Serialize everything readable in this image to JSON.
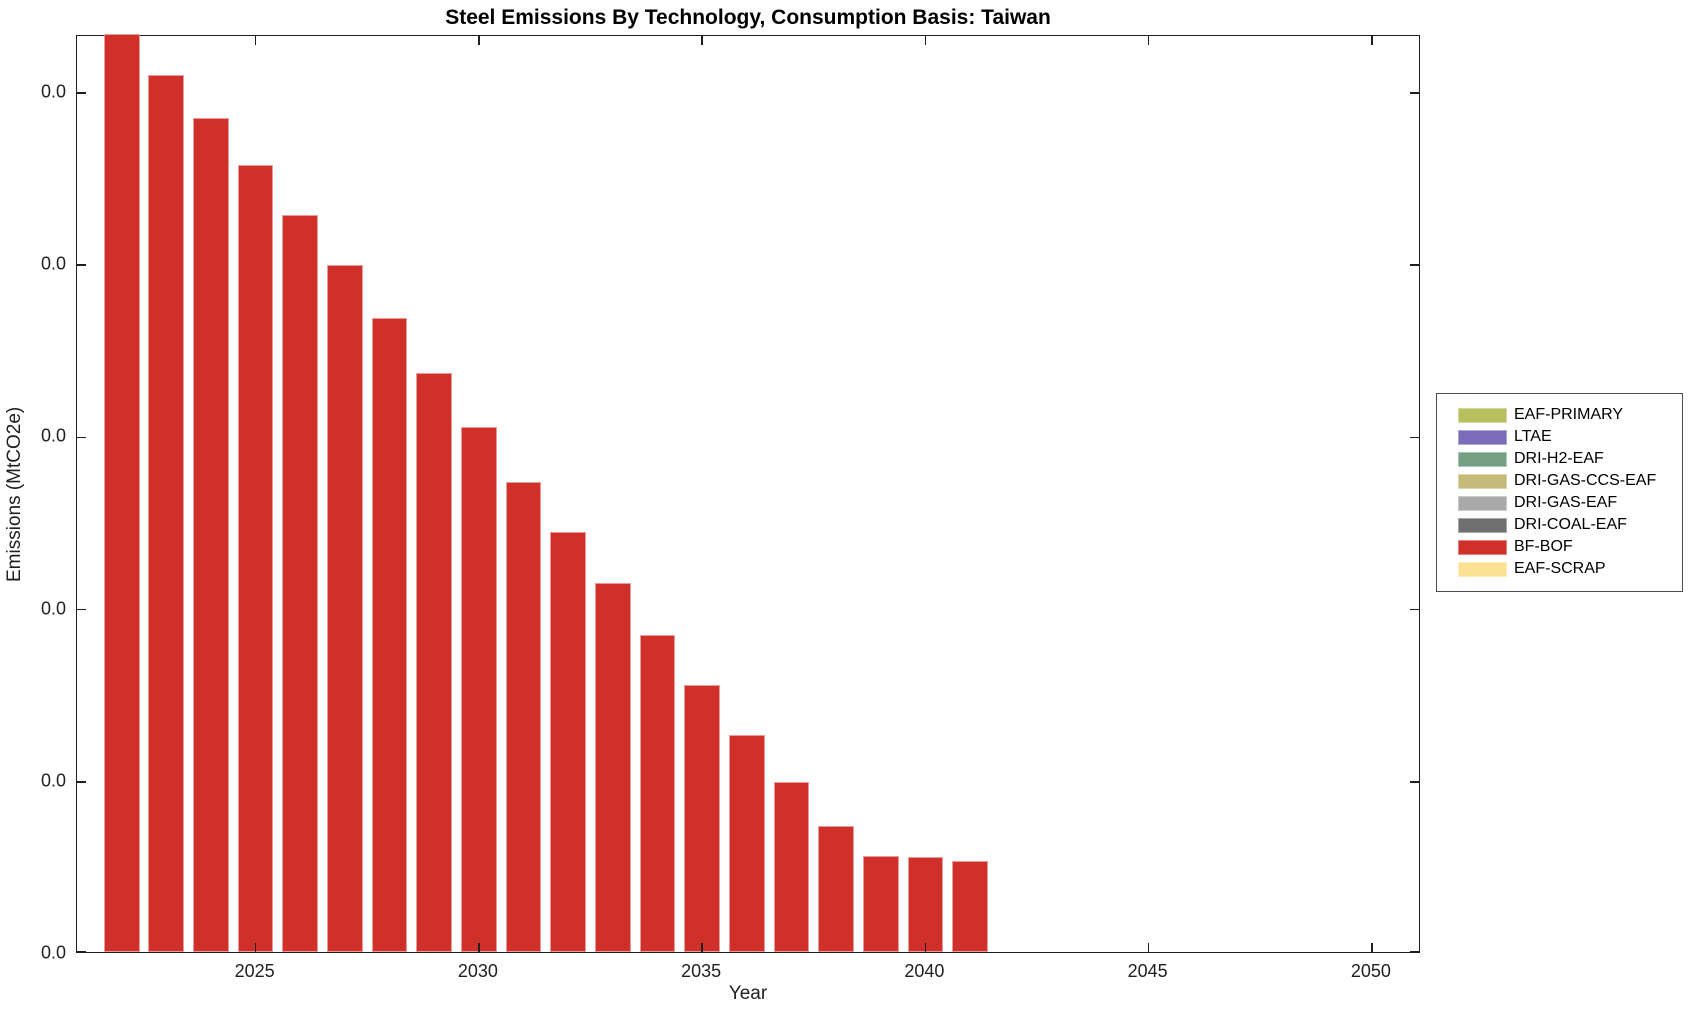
{
  "figure": {
    "background": "#ffffff",
    "axis_color": "#1f1f1f"
  },
  "chart_data": {
    "type": "bar",
    "title": "Steel Emissions By Technology, Consumption Basis: Taiwan",
    "xlabel": "Year",
    "ylabel": "Emissions (MtCO2e)",
    "grid": false,
    "x_range": [
      2021,
      2051.1
    ],
    "x_ticks": [
      2025,
      2030,
      2035,
      2040,
      2045,
      2050
    ],
    "y_tick_values": [
      0,
      1,
      2,
      3,
      4,
      5
    ],
    "y_tick_labels": [
      "0.0",
      "0.0",
      "0.0",
      "0.0",
      "0.0",
      "0.0"
    ],
    "y_axis_top": 5.33,
    "bar_width_fraction": 0.8,
    "legend": {
      "position": "outside-right",
      "entries": [
        {
          "label": "EAF-PRIMARY",
          "color": "#b7bf5e"
        },
        {
          "label": "LTAE",
          "color": "#7a6cb8"
        },
        {
          "label": "DRI-H2-EAF",
          "color": "#75a083"
        },
        {
          "label": "DRI-GAS-CCS-EAF",
          "color": "#c4ba7a"
        },
        {
          "label": "DRI-GAS-EAF",
          "color": "#a9a9a9"
        },
        {
          "label": "DRI-COAL-EAF",
          "color": "#6f6f6f"
        },
        {
          "label": "BF-BOF",
          "color": "#d0302a"
        },
        {
          "label": "EAF-SCRAP",
          "color": "#fbe191"
        }
      ]
    },
    "series": [
      {
        "name": "BF-BOF",
        "color": "#d0302a",
        "x": [
          2022,
          2023,
          2024,
          2025,
          2026,
          2027,
          2028,
          2029,
          2030,
          2031,
          2032,
          2033,
          2034,
          2035,
          2036,
          2037,
          2038,
          2039,
          2040,
          2041
        ],
        "values": [
          5.35,
          5.09,
          4.84,
          4.57,
          4.28,
          3.99,
          3.68,
          3.36,
          3.05,
          2.73,
          2.44,
          2.14,
          1.84,
          1.55,
          1.26,
          0.99,
          0.73,
          0.56,
          0.55,
          0.53
        ],
        "note": "values in y-axis units (1 unit = one tick interval; every y tick label renders as 0.0); 2022 bar is clipped at the plot top"
      }
    ]
  }
}
